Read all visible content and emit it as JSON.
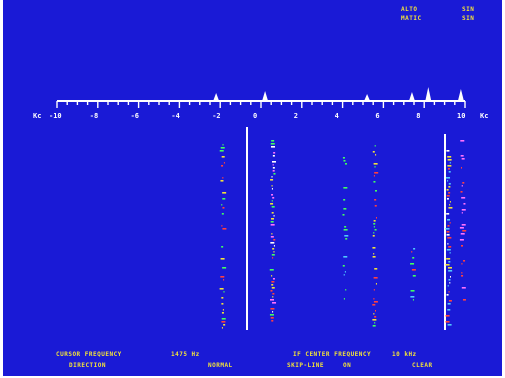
{
  "status": {
    "rows": [
      {
        "label": "ALTO",
        "value": "SIN"
      },
      {
        "label": "MATIC",
        "value": "SIN"
      }
    ]
  },
  "scale": {
    "unit": "Kc",
    "ticks": [
      "-10",
      "-8",
      "-6",
      "-4",
      "-2",
      "0",
      "2",
      "4",
      "6",
      "8",
      "10"
    ],
    "min": -10,
    "max": 10
  },
  "footer": {
    "cursor_label": "CURSOR FREQUENCY",
    "cursor_value": "1475 Hz",
    "center_label": "IF CENTER FREQUENCY",
    "center_value": "10 kHz",
    "direction_label": "DIRECTION",
    "direction_value": "NORMAL",
    "skip_label": "SKIP-LINE",
    "skip_value": "ON",
    "mode_value": "CLEAR"
  },
  "colors": {
    "background": "#1a1ad6",
    "text": "#f2e23a",
    "scale": "#ffffff"
  }
}
